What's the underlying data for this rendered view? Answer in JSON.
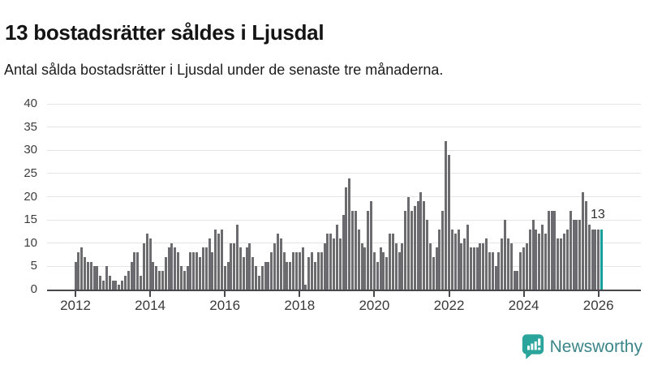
{
  "header": {
    "title": "13 bostadsrätter såldes i Ljusdal",
    "subtitle": "Antal sålda bostadsrätter i Ljusdal under de senaste tre månaderna."
  },
  "chart_data": {
    "type": "bar",
    "title": "13 bostadsrätter såldes i Ljusdal",
    "subtitle": "Antal sålda bostadsrätter i Ljusdal under de senaste tre månaderna.",
    "x_unit": "month",
    "x_start": "2012-01",
    "x_end": "2026-02",
    "values": [
      6,
      8,
      9,
      7,
      6,
      6,
      5,
      5,
      3,
      2,
      5,
      3,
      2,
      2,
      1,
      2,
      3,
      4,
      6,
      8,
      8,
      3,
      10,
      12,
      11,
      6,
      5,
      4,
      4,
      7,
      9,
      10,
      9,
      8,
      5,
      4,
      5,
      8,
      8,
      8,
      7,
      9,
      9,
      11,
      8,
      13,
      12,
      13,
      5,
      6,
      10,
      10,
      14,
      9,
      7,
      9,
      10,
      7,
      5,
      3,
      5,
      6,
      6,
      8,
      10,
      12,
      11,
      8,
      6,
      6,
      8,
      8,
      8,
      9,
      1,
      7,
      8,
      6,
      8,
      8,
      10,
      12,
      12,
      11,
      14,
      11,
      16,
      22,
      24,
      17,
      17,
      13,
      10,
      9,
      17,
      19,
      8,
      6,
      9,
      8,
      7,
      12,
      12,
      10,
      8,
      10,
      17,
      20,
      17,
      18,
      19,
      21,
      19,
      15,
      10,
      7,
      9,
      13,
      17,
      32,
      29,
      13,
      12,
      13,
      10,
      11,
      14,
      9,
      9,
      9,
      10,
      10,
      11,
      8,
      8,
      5,
      8,
      11,
      15,
      11,
      10,
      4,
      4,
      8,
      9,
      10,
      13,
      15,
      13,
      12,
      14,
      12,
      17,
      17,
      17,
      11,
      11,
      12,
      13,
      17,
      15,
      15,
      15,
      21,
      19,
      14,
      13,
      13,
      13,
      13
    ],
    "highlight_last": {
      "value": 13,
      "label": "13",
      "color": "#14a09a"
    },
    "y_ticks": [
      0,
      5,
      10,
      15,
      20,
      25,
      30,
      35,
      40
    ],
    "ylim": [
      0,
      40
    ],
    "x_tick_years": [
      2012,
      2014,
      2016,
      2018,
      2020,
      2022,
      2024,
      2026
    ],
    "grid": true,
    "legend": "none",
    "bar_color": "#6b6b70",
    "grid_color": "#e4e4e6",
    "axis_color": "#47474c",
    "annotation": "13"
  },
  "footer": {
    "brand": "Newsworthy",
    "brand_color": "#3a8689",
    "icon": "newsworthy-bar-chart-bubble-icon",
    "icon_color": "#2ba59c"
  }
}
